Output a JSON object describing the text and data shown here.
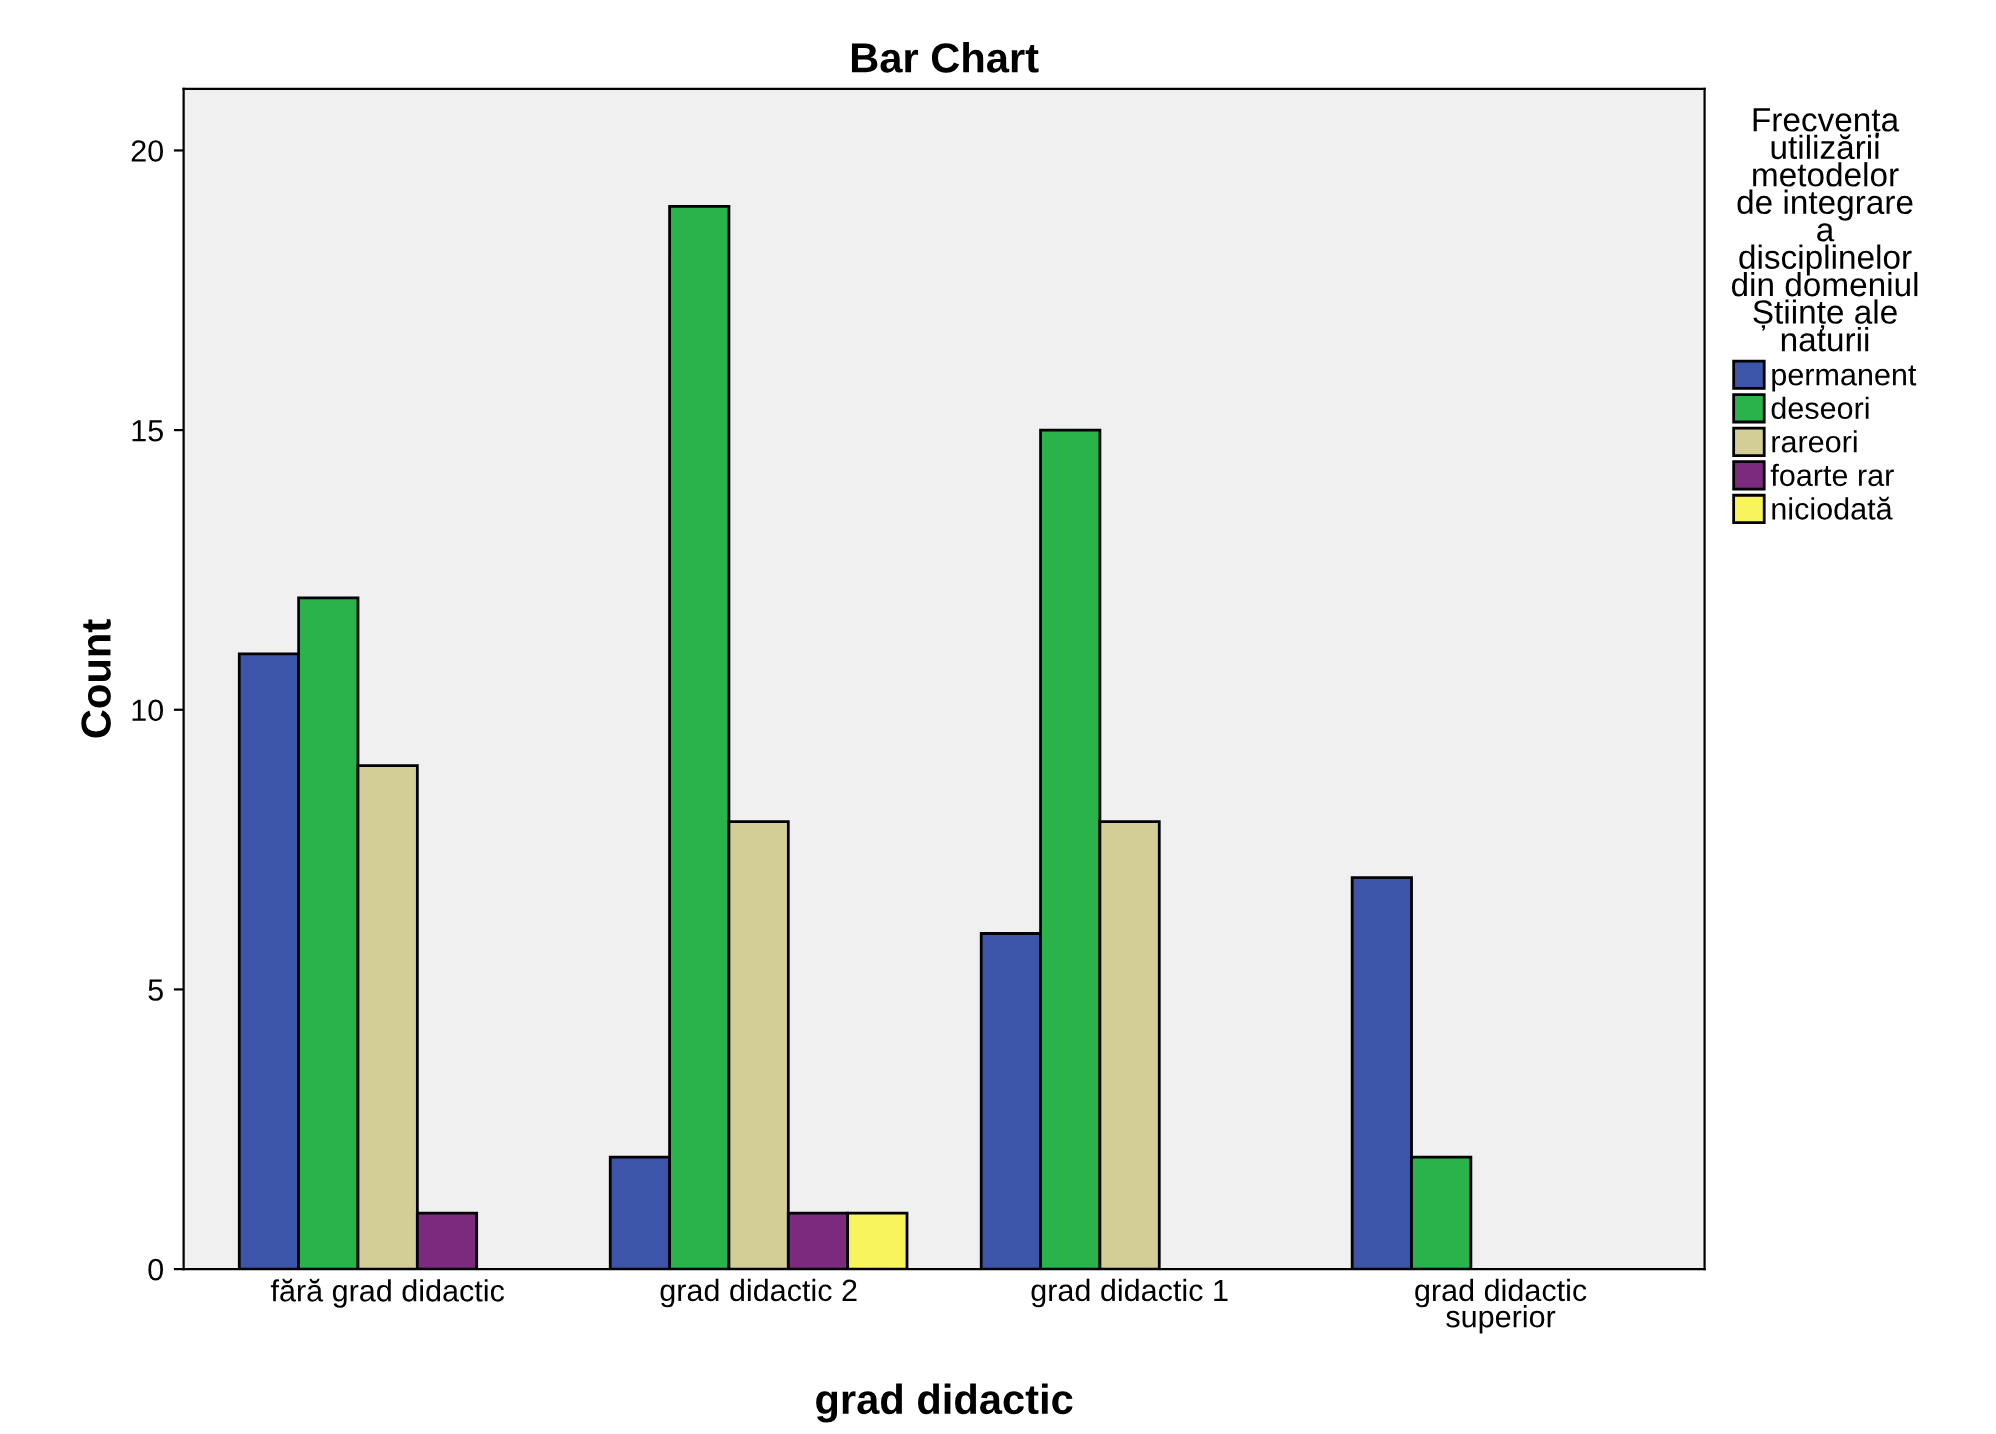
{
  "chart_data": {
    "type": "bar",
    "title": "Bar Chart",
    "xlabel": "grad didactic",
    "ylabel": "Count",
    "legend_title": "Frecvența\nutilizării\nmetodelor\nde integrare\na\ndisciplinelor\ndin domeniul\nȘtiințe ale\nnaturii",
    "categories": [
      "fără grad didactic",
      "grad didactic 2",
      "grad didactic 1",
      "grad didactic\nsuperior"
    ],
    "series": [
      {
        "name": "permanent",
        "color": "#3d55a8",
        "values": [
          11,
          2,
          6,
          7
        ]
      },
      {
        "name": "deseori",
        "color": "#2ab34a",
        "values": [
          12,
          19,
          15,
          2
        ]
      },
      {
        "name": "rareori",
        "color": "#d3cd96",
        "values": [
          9,
          8,
          8,
          null
        ]
      },
      {
        "name": "foarte rar",
        "color": "#7b2a7e",
        "values": [
          1,
          1,
          null,
          null
        ]
      },
      {
        "name": "niciodată",
        "color": "#f8f45c",
        "values": [
          null,
          1,
          null,
          null
        ]
      }
    ],
    "ylim": [
      0,
      21.1
    ],
    "yticks": [
      0,
      5,
      10,
      15,
      20
    ],
    "grid": false,
    "legend": "right"
  }
}
